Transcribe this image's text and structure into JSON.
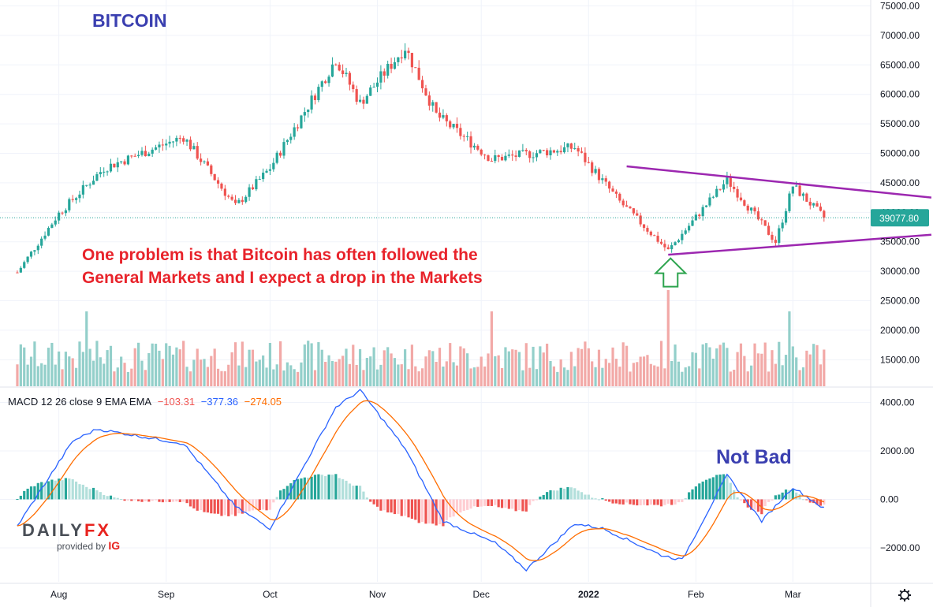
{
  "chart_data": [
    {
      "type": "candlestick",
      "title": "BITCOIN",
      "annotation": "One problem is that Bitcoin has often followed the General Markets and I expect a drop in the Markets",
      "price_axis": {
        "ticks": [
          "75000.00",
          "70000.00",
          "65000.00",
          "60000.00",
          "55000.00",
          "50000.00",
          "45000.00",
          "40000.00",
          "35000.00",
          "30000.00",
          "25000.00",
          "20000.00",
          "15000.00"
        ],
        "range": [
          10500,
          76000
        ]
      },
      "last_price": "39077.80",
      "time_axis": [
        "Aug",
        "Sep",
        "Oct",
        "Nov",
        "Dec",
        "2022",
        "Feb",
        "Mar"
      ],
      "key_prices": [
        {
          "date": "2021-07-20",
          "value": 29800
        },
        {
          "date": "2021-08-01",
          "value": 39800
        },
        {
          "date": "2021-08-14",
          "value": 47500
        },
        {
          "date": "2021-09-06",
          "value": 52800
        },
        {
          "date": "2021-09-21",
          "value": 41000
        },
        {
          "date": "2021-10-01",
          "value": 47500
        },
        {
          "date": "2021-10-15",
          "value": 61000
        },
        {
          "date": "2021-10-20",
          "value": 66000
        },
        {
          "date": "2021-10-27",
          "value": 58500
        },
        {
          "date": "2021-11-09",
          "value": 68000
        },
        {
          "date": "2021-11-18",
          "value": 56500
        },
        {
          "date": "2021-12-04",
          "value": 49000
        },
        {
          "date": "2021-12-28",
          "value": 51000
        },
        {
          "date": "2022-01-10",
          "value": 41800
        },
        {
          "date": "2022-01-24",
          "value": 33500
        },
        {
          "date": "2022-02-10",
          "value": 45500
        },
        {
          "date": "2022-02-24",
          "value": 35000
        },
        {
          "date": "2022-03-01",
          "value": 44500
        },
        {
          "date": "2022-03-10",
          "value": 39077.8
        }
      ],
      "trendlines": [
        {
          "name": "upper",
          "from": {
            "date": "2022-01-12",
            "value": 47800
          },
          "to": {
            "date": "2022-04-10",
            "value": 42500
          }
        },
        {
          "name": "lower",
          "from": {
            "date": "2022-01-24",
            "value": 32800
          },
          "to": {
            "date": "2022-04-10",
            "value": 36200
          }
        }
      ]
    },
    {
      "type": "macd",
      "legend_label": "MACD 12 26 close 9 EMA EMA",
      "histogram_value": "−103.31",
      "macd_value": "−377.36",
      "signal_value": "−274.05",
      "axis_ticks": [
        "4000.00",
        "2000.00",
        "0.00",
        "−2000.00"
      ],
      "range": [
        -3400,
        4600
      ],
      "annotation": "Not Bad",
      "key_macd": [
        {
          "date": "2021-07-20",
          "value": -1100
        },
        {
          "date": "2021-08-05",
          "value": 2400
        },
        {
          "date": "2021-08-12",
          "value": 2900
        },
        {
          "date": "2021-09-06",
          "value": 2300
        },
        {
          "date": "2021-09-21",
          "value": -300
        },
        {
          "date": "2021-10-01",
          "value": -1200
        },
        {
          "date": "2021-10-20",
          "value": 3800
        },
        {
          "date": "2021-10-27",
          "value": 4500
        },
        {
          "date": "2021-11-09",
          "value": 2100
        },
        {
          "date": "2021-11-20",
          "value": -900
        },
        {
          "date": "2021-12-05",
          "value": -1800
        },
        {
          "date": "2021-12-14",
          "value": -2900
        },
        {
          "date": "2021-12-28",
          "value": -1000
        },
        {
          "date": "2022-01-05",
          "value": -1200
        },
        {
          "date": "2022-01-22",
          "value": -2300
        },
        {
          "date": "2022-01-28",
          "value": -2500
        },
        {
          "date": "2022-02-10",
          "value": 1000
        },
        {
          "date": "2022-02-20",
          "value": -900
        },
        {
          "date": "2022-03-01",
          "value": 500
        },
        {
          "date": "2022-03-10",
          "value": -377
        }
      ]
    }
  ],
  "colors": {
    "up": "#26a69a",
    "down": "#ef5350",
    "volume_up": "#93cfca",
    "volume_down": "#f2a9a7",
    "macd_line": "#2962ff",
    "signal_line": "#ff6d00",
    "hist_up_strong": "#26a69a",
    "hist_up_weak": "#b2dfdb",
    "hist_down_strong": "#ef5350",
    "hist_down_weak": "#ffcdd2",
    "trendline": "#9c27b0",
    "arrow": "#2da44e",
    "title": "#3a3fb0",
    "annotation": "#e8232b",
    "not_bad": "#3a3fb0",
    "last_price_badge": "#26a69a"
  },
  "logo": {
    "word_a": "DAILY",
    "word_b": "FX",
    "provided_by": "provided by",
    "brand": "IG"
  },
  "settings_icon": "gear-icon"
}
